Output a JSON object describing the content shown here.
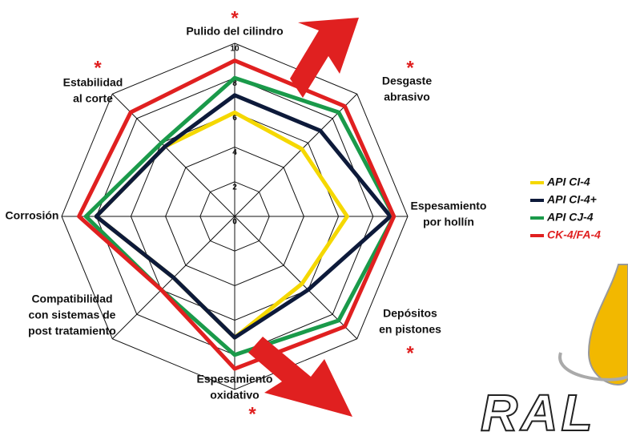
{
  "chart_data": {
    "type": "radar",
    "categories": [
      [
        "Pulido del cilindro"
      ],
      [
        "Desgaste",
        "abrasivo"
      ],
      [
        "Espesamiento",
        "por hollín"
      ],
      [
        "Depósitos",
        "en pistones"
      ],
      [
        "Espesamiento",
        "oxidativo"
      ],
      [
        "Compatibilidad",
        "con sistemas de",
        "post tratamiento"
      ],
      [
        "Corrosión"
      ],
      [
        "Estabilidad",
        "al corte"
      ]
    ],
    "markers": [
      "*",
      "*",
      null,
      "*",
      "*",
      null,
      null,
      "*"
    ],
    "ylim": [
      0,
      10
    ],
    "yticks": [
      0,
      2,
      4,
      6,
      8,
      10
    ],
    "grid": true,
    "series": [
      {
        "name": "API CI-4",
        "color": "#f5d800",
        "values": [
          6,
          5.5,
          6.5,
          5.5,
          7,
          5,
          8,
          5.7
        ]
      },
      {
        "name": "API CI-4+",
        "color": "#0d1a3a",
        "values": [
          7,
          7,
          9,
          6,
          7,
          5,
          8,
          5.7
        ]
      },
      {
        "name": "API CJ-4",
        "color": "#1a9a4a",
        "values": [
          8,
          8.5,
          9.2,
          8.5,
          8,
          6,
          8.6,
          6
        ]
      },
      {
        "name": "CK-4/FA-4",
        "color": "#e02020",
        "values": [
          9,
          9,
          9.2,
          9,
          8.8,
          6,
          9,
          8.5
        ]
      }
    ],
    "brand": "RAL"
  }
}
